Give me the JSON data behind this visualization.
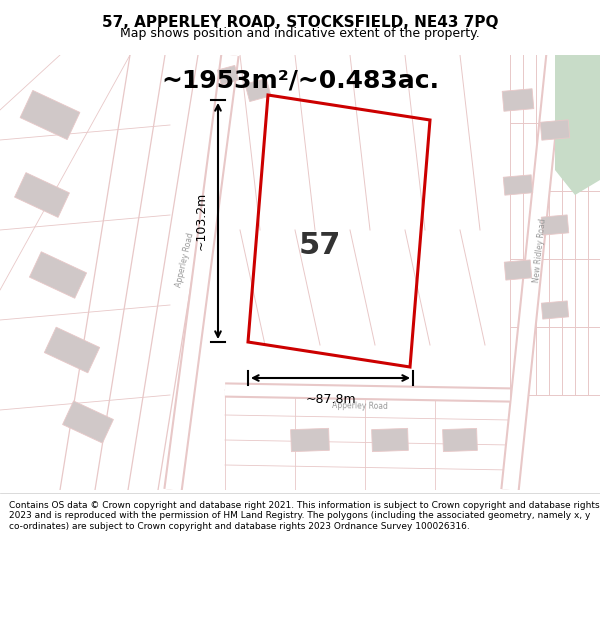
{
  "title_line1": "57, APPERLEY ROAD, STOCKSFIELD, NE43 7PQ",
  "title_line2": "Map shows position and indicative extent of the property.",
  "area_text": "~1953m²/~0.483ac.",
  "number_label": "57",
  "dim_vertical": "~103.2m",
  "dim_horizontal": "~87.8m",
  "footer_text": "Contains OS data © Crown copyright and database right 2021. This information is subject to Crown copyright and database rights 2023 and is reproduced with the permission of HM Land Registry. The polygons (including the associated geometry, namely x, y co-ordinates) are subject to Crown copyright and database rights 2023 Ordnance Survey 100026316.",
  "map_bg": "#f5f2f2",
  "road_color": "#e8c8c8",
  "highlight_color": "#cc0000",
  "green_area": "#c8dcc8"
}
